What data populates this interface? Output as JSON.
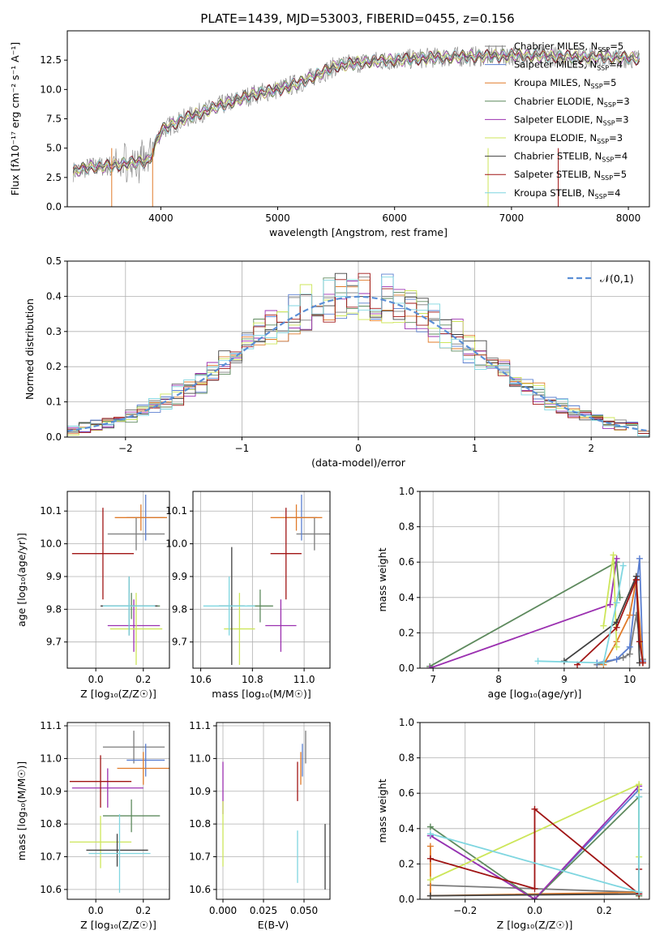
{
  "page_title": "PLATE=1439, MJD=53003, FIBERID=0455, z=0.156",
  "models": [
    {
      "name": "Chabrier MILES",
      "n_ssp": "5",
      "color": "#7b7b7b"
    },
    {
      "name": "Salpeter MILES",
      "n_ssp": "4",
      "color": "#5b7fd0"
    },
    {
      "name": "Kroupa MILES",
      "n_ssp": "5",
      "color": "#e07b2a"
    },
    {
      "name": "Chabrier ELODIE",
      "n_ssp": "3",
      "color": "#5e8a5e"
    },
    {
      "name": "Salpeter ELODIE",
      "n_ssp": "3",
      "color": "#9b30b0"
    },
    {
      "name": "Kroupa ELODIE",
      "n_ssp": "3",
      "color": "#cde65a"
    },
    {
      "name": "Chabrier STELIB",
      "n_ssp": "4",
      "color": "#404040"
    },
    {
      "name": "Salpeter STELIB",
      "n_ssp": "5",
      "color": "#a01515"
    },
    {
      "name": "Kroupa STELIB",
      "n_ssp": "4",
      "color": "#7fd6e0"
    }
  ],
  "chart_data": [
    {
      "id": "spectrum",
      "type": "line",
      "title": "PLATE=1439, MJD=53003, FIBERID=0455, z=0.156",
      "xlabel": "wavelength [Angstrom, rest frame]",
      "ylabel": "Flux [fλ10⁻¹⁷ erg cm⁻² s⁻¹ A⁻¹]",
      "xlim": [
        3200,
        8180
      ],
      "ylim": [
        0,
        15
      ],
      "xticks": [
        4000,
        5000,
        6000,
        7000,
        8000
      ],
      "yticks": [
        0.0,
        2.5,
        5.0,
        7.5,
        10.0,
        12.5
      ],
      "continuum": [
        [
          3250,
          3.0
        ],
        [
          3400,
          3.4
        ],
        [
          3600,
          3.5
        ],
        [
          3700,
          3.7
        ],
        [
          3900,
          3.9
        ],
        [
          4000,
          6.5
        ],
        [
          4200,
          7.5
        ],
        [
          4500,
          8.6
        ],
        [
          4800,
          9.6
        ],
        [
          5000,
          10.0
        ],
        [
          5200,
          10.6
        ],
        [
          5500,
          12.0
        ],
        [
          5800,
          12.4
        ],
        [
          6000,
          12.5
        ],
        [
          6300,
          12.7
        ],
        [
          6600,
          12.8
        ],
        [
          7000,
          12.9
        ],
        [
          7500,
          12.8
        ],
        [
          8000,
          12.7
        ],
        [
          8100,
          12.6
        ]
      ]
    },
    {
      "id": "residuals",
      "type": "line",
      "xlabel": "(data-model)/error",
      "ylabel": "Normed distribution",
      "xlim": [
        -2.5,
        2.5
      ],
      "ylim": [
        0,
        0.5
      ],
      "xticks": [
        -2,
        -1,
        0,
        1,
        2
      ],
      "yticks": [
        0.0,
        0.1,
        0.2,
        0.3,
        0.4,
        0.5
      ],
      "legend": "𝒩(0,1)",
      "legend_color": "#5b8fd6"
    },
    {
      "id": "age_vs_z",
      "type": "scatter",
      "xlabel": "Z [log₁₀(Z/Z☉)]",
      "ylabel": "age [log₁₀(age/yr)]",
      "xlim": [
        -0.12,
        0.31
      ],
      "ylim": [
        9.62,
        10.16
      ],
      "xticks": [
        0.0,
        0.2
      ],
      "yticks": [
        9.7,
        9.8,
        9.9,
        10.0,
        10.1
      ],
      "points": [
        {
          "m": 0,
          "x": 0.17,
          "y": 10.03,
          "xe": 0.12,
          "ye": 0.05
        },
        {
          "m": 1,
          "x": 0.21,
          "y": 10.08,
          "xe": 0.08,
          "ye": 0.07
        },
        {
          "m": 2,
          "x": 0.19,
          "y": 10.08,
          "xe": 0.11,
          "ye": 0.04
        },
        {
          "m": 3,
          "x": 0.15,
          "y": 9.81,
          "xe": 0.12,
          "ye": 0.04
        },
        {
          "m": 4,
          "x": 0.16,
          "y": 9.75,
          "xe": 0.11,
          "ye": 0.08
        },
        {
          "m": 5,
          "x": 0.17,
          "y": 9.74,
          "xe": 0.11,
          "ye": 0.11
        },
        {
          "m": 6,
          "x": 0.14,
          "y": 9.81,
          "xe": 0.12,
          "ye": 0.09
        },
        {
          "m": 7,
          "x": 0.03,
          "y": 9.97,
          "xe": 0.13,
          "ye": 0.14
        },
        {
          "m": 8,
          "x": 0.14,
          "y": 9.81,
          "xe": 0.11,
          "ye": 0.09
        }
      ]
    },
    {
      "id": "age_vs_mass",
      "type": "scatter",
      "xlabel": "mass [log₁₀(M/M☉)]",
      "ylabel": "",
      "xlim": [
        10.57,
        11.1
      ],
      "ylim": [
        9.62,
        10.16
      ],
      "xticks": [
        10.6,
        10.8,
        11.0
      ],
      "yticks": [
        9.7,
        9.8,
        9.9,
        10.0,
        10.1
      ],
      "points": [
        {
          "m": 0,
          "x": 11.04,
          "y": 10.03,
          "xe": 0.07,
          "ye": 0.05
        },
        {
          "m": 1,
          "x": 10.99,
          "y": 10.08,
          "xe": 0.06,
          "ye": 0.07
        },
        {
          "m": 2,
          "x": 10.97,
          "y": 10.08,
          "xe": 0.1,
          "ye": 0.04
        },
        {
          "m": 3,
          "x": 10.83,
          "y": 9.81,
          "xe": 0.05,
          "ye": 0.05
        },
        {
          "m": 4,
          "x": 10.91,
          "y": 9.75,
          "xe": 0.06,
          "ye": 0.08
        },
        {
          "m": 5,
          "x": 10.75,
          "y": 9.74,
          "xe": 0.06,
          "ye": 0.11
        },
        {
          "m": 6,
          "x": 10.72,
          "y": 9.81,
          "xe": 0.05,
          "ye": 0.18
        },
        {
          "m": 7,
          "x": 10.93,
          "y": 9.97,
          "xe": 0.06,
          "ye": 0.14
        },
        {
          "m": 8,
          "x": 10.71,
          "y": 9.81,
          "xe": 0.1,
          "ye": 0.09
        }
      ]
    },
    {
      "id": "weight_vs_age",
      "type": "line",
      "xlabel": "age [log₁₀(age/yr)]",
      "ylabel": "mass weight",
      "xlim": [
        6.8,
        10.3
      ],
      "ylim": [
        0,
        1.0
      ],
      "xticks": [
        7,
        8,
        9,
        10
      ],
      "yticks": [
        0.0,
        0.2,
        0.4,
        0.6,
        0.8,
        1.0
      ],
      "series": [
        {
          "m": 0,
          "x": [
            9.5,
            9.9,
            10.0,
            10.1,
            10.2
          ],
          "y": [
            0.02,
            0.06,
            0.08,
            0.3,
            0.05
          ]
        },
        {
          "m": 1,
          "x": [
            9.5,
            9.8,
            10.0,
            10.15,
            10.2
          ],
          "y": [
            0.03,
            0.05,
            0.12,
            0.62,
            0.04
          ]
        },
        {
          "m": 2,
          "x": [
            9.6,
            9.8,
            10.0,
            10.1,
            10.2
          ],
          "y": [
            0.02,
            0.15,
            0.3,
            0.5,
            0.03
          ]
        },
        {
          "m": 3,
          "x": [
            6.95,
            9.8,
            9.85
          ],
          "y": [
            0.01,
            0.6,
            0.4
          ]
        },
        {
          "m": 4,
          "x": [
            6.95,
            9.7,
            9.8
          ],
          "y": [
            0.0,
            0.36,
            0.62
          ]
        },
        {
          "m": 5,
          "x": [
            9.6,
            9.75,
            9.8
          ],
          "y": [
            0.24,
            0.64,
            0.12
          ]
        },
        {
          "m": 6,
          "x": [
            9.0,
            9.8,
            10.1,
            10.15
          ],
          "y": [
            0.04,
            0.26,
            0.52,
            0.03
          ]
        },
        {
          "m": 7,
          "x": [
            9.2,
            9.8,
            10.1,
            10.15,
            10.2
          ],
          "y": [
            0.02,
            0.23,
            0.5,
            0.15,
            0.03
          ]
        },
        {
          "m": 8,
          "x": [
            8.6,
            9.6,
            9.8,
            9.9
          ],
          "y": [
            0.04,
            0.03,
            0.37,
            0.58
          ]
        }
      ]
    },
    {
      "id": "mass_vs_z",
      "type": "scatter",
      "xlabel": "Z [log₁₀(Z/Z☉)]",
      "ylabel": "mass [log₁₀(M/M☉)]",
      "xlim": [
        -0.12,
        0.31
      ],
      "ylim": [
        10.57,
        11.11
      ],
      "xticks": [
        0.0,
        0.2
      ],
      "yticks": [
        10.6,
        10.7,
        10.8,
        10.9,
        11.0,
        11.1
      ],
      "points": [
        {
          "m": 0,
          "x": 0.16,
          "y": 11.035,
          "xe": 0.13,
          "ye": 0.05
        },
        {
          "m": 1,
          "x": 0.21,
          "y": 10.995,
          "xe": 0.08,
          "ye": 0.05
        },
        {
          "m": 2,
          "x": 0.2,
          "y": 10.97,
          "xe": 0.11,
          "ye": 0.05
        },
        {
          "m": 3,
          "x": 0.15,
          "y": 10.825,
          "xe": 0.12,
          "ye": 0.05
        },
        {
          "m": 4,
          "x": 0.05,
          "y": 10.91,
          "xe": 0.15,
          "ye": 0.06
        },
        {
          "m": 5,
          "x": 0.02,
          "y": 10.745,
          "xe": 0.13,
          "ye": 0.08
        },
        {
          "m": 6,
          "x": 0.09,
          "y": 10.72,
          "xe": 0.13,
          "ye": 0.05
        },
        {
          "m": 7,
          "x": 0.02,
          "y": 10.93,
          "xe": 0.13,
          "ye": 0.08
        },
        {
          "m": 8,
          "x": 0.1,
          "y": 10.71,
          "xe": 0.13,
          "ye": 0.12
        }
      ]
    },
    {
      "id": "mass_vs_ebv",
      "type": "scatter",
      "xlabel": "E(B-V)",
      "ylabel": "",
      "xlim": [
        -0.004,
        0.066
      ],
      "ylim": [
        10.57,
        11.11
      ],
      "xticks": [
        0.0,
        0.025,
        0.05
      ],
      "yticks": [
        10.6,
        10.7,
        10.8,
        10.9,
        11.0,
        11.1
      ],
      "points": [
        {
          "m": 0,
          "x": 0.051,
          "y": 11.035,
          "xe": 0,
          "ye": 0.05
        },
        {
          "m": 1,
          "x": 0.049,
          "y": 10.995,
          "xe": 0,
          "ye": 0.05
        },
        {
          "m": 2,
          "x": 0.048,
          "y": 10.97,
          "xe": 0,
          "ye": 0.05
        },
        {
          "m": 4,
          "x": 0.0,
          "y": 10.91,
          "xe": 0,
          "ye": 0.08
        },
        {
          "m": 5,
          "x": 0.0,
          "y": 10.77,
          "xe": 0,
          "ye": 0.1
        },
        {
          "m": 6,
          "x": 0.063,
          "y": 10.7,
          "xe": 0,
          "ye": 0.1
        },
        {
          "m": 7,
          "x": 0.046,
          "y": 10.93,
          "xe": 0,
          "ye": 0.06
        },
        {
          "m": 8,
          "x": 0.046,
          "y": 10.7,
          "xe": 0,
          "ye": 0.08
        }
      ]
    },
    {
      "id": "weight_vs_z",
      "type": "line",
      "xlabel": "Z [log₁₀(Z/Z☉)]",
      "ylabel": "mass weight",
      "xlim": [
        -0.33,
        0.33
      ],
      "ylim": [
        0,
        1.0
      ],
      "xticks": [
        -0.2,
        0.0,
        0.2
      ],
      "yticks": [
        0.0,
        0.2,
        0.4,
        0.6,
        0.8,
        1.0
      ],
      "series": [
        {
          "m": 0,
          "x": [
            -0.3,
            0.3,
            0.3
          ],
          "y": [
            0.08,
            0.04,
            0.02
          ]
        },
        {
          "m": 1,
          "x": [
            -0.3,
            0.0,
            0.3,
            0.3
          ],
          "y": [
            0.36,
            0.0,
            0.62,
            0.03
          ]
        },
        {
          "m": 2,
          "x": [
            -0.3,
            -0.3,
            0.3,
            0.3
          ],
          "y": [
            0.3,
            0.02,
            0.04,
            0.02
          ]
        },
        {
          "m": 3,
          "x": [
            -0.3,
            0.0,
            0.3,
            0.3
          ],
          "y": [
            0.41,
            0.0,
            0.58,
            0.02
          ]
        },
        {
          "m": 4,
          "x": [
            -0.3,
            0.0,
            0.3
          ],
          "y": [
            0.36,
            0.0,
            0.64
          ]
        },
        {
          "m": 5,
          "x": [
            -0.3,
            0.3,
            0.3
          ],
          "y": [
            0.11,
            0.65,
            0.24
          ]
        },
        {
          "m": 6,
          "x": [
            -0.3,
            0.3
          ],
          "y": [
            0.02,
            0.03
          ]
        },
        {
          "m": 7,
          "x": [
            -0.3,
            0.0,
            0.0,
            0.3,
            0.3
          ],
          "y": [
            0.23,
            0.06,
            0.51,
            0.03,
            0.17
          ]
        },
        {
          "m": 8,
          "x": [
            -0.3,
            0.3,
            0.3
          ],
          "y": [
            0.37,
            0.04,
            0.58
          ]
        }
      ]
    }
  ]
}
